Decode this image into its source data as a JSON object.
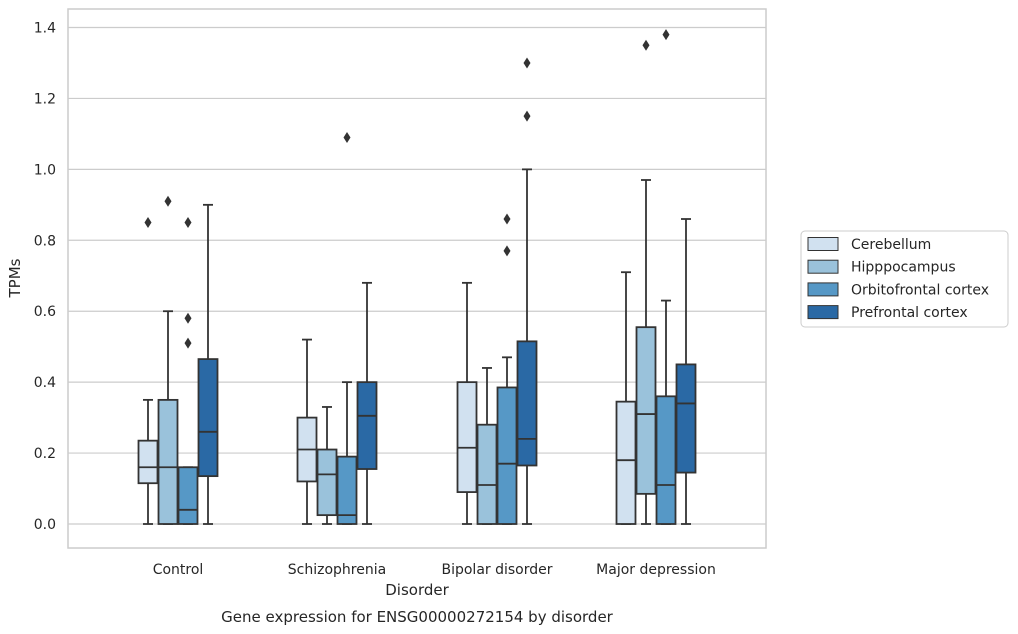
{
  "chart_data": {
    "type": "boxplot",
    "xlabel": "Disorder",
    "ylabel": "TPMs",
    "caption": "Gene expression for ENSG00000272154 by disorder",
    "ylim": [
      -0.065,
      1.45
    ],
    "yticks": [
      0.0,
      0.2,
      0.4,
      0.6,
      0.8,
      1.0,
      1.2,
      1.4
    ],
    "ytick_labels": [
      "0.0",
      "0.2",
      "0.4",
      "0.6",
      "0.8",
      "1.0",
      "1.2",
      "1.4"
    ],
    "grid": "horizontal",
    "legend_position": "right",
    "categories": [
      "Control",
      "Schizophrenia",
      "Bipolar disorder",
      "Major depression"
    ],
    "series": [
      {
        "name": "Cerebellum",
        "color": "#d1e1f0",
        "boxes": [
          {
            "q1": 0.115,
            "median": 0.16,
            "q3": 0.235,
            "whisker_low": 0.0,
            "whisker_high": 0.35,
            "outliers": [
              0.85
            ]
          },
          {
            "q1": 0.12,
            "median": 0.21,
            "q3": 0.3,
            "whisker_low": 0.0,
            "whisker_high": 0.52,
            "outliers": []
          },
          {
            "q1": 0.09,
            "median": 0.215,
            "q3": 0.4,
            "whisker_low": 0.0,
            "whisker_high": 0.68,
            "outliers": []
          },
          {
            "q1": 0.0,
            "median": 0.18,
            "q3": 0.345,
            "whisker_low": 0.0,
            "whisker_high": 0.71,
            "outliers": []
          }
        ]
      },
      {
        "name": "Hipppocampus",
        "color": "#9ac2db",
        "boxes": [
          {
            "q1": 0.0,
            "median": 0.16,
            "q3": 0.35,
            "whisker_low": 0.0,
            "whisker_high": 0.6,
            "outliers": [
              0.91
            ]
          },
          {
            "q1": 0.025,
            "median": 0.14,
            "q3": 0.21,
            "whisker_low": 0.0,
            "whisker_high": 0.33,
            "outliers": []
          },
          {
            "q1": 0.0,
            "median": 0.11,
            "q3": 0.28,
            "whisker_low": 0.0,
            "whisker_high": 0.44,
            "outliers": []
          },
          {
            "q1": 0.085,
            "median": 0.31,
            "q3": 0.555,
            "whisker_low": 0.0,
            "whisker_high": 0.97,
            "outliers": [
              1.35
            ]
          }
        ]
      },
      {
        "name": "Orbitofrontal cortex",
        "color": "#5698c6",
        "boxes": [
          {
            "q1": 0.0,
            "median": 0.04,
            "q3": 0.16,
            "whisker_low": 0.0,
            "whisker_high": 0.16,
            "outliers": [
              0.51,
              0.58,
              0.85
            ]
          },
          {
            "q1": 0.0,
            "median": 0.025,
            "q3": 0.19,
            "whisker_low": 0.0,
            "whisker_high": 0.4,
            "outliers": [
              1.09
            ]
          },
          {
            "q1": 0.0,
            "median": 0.17,
            "q3": 0.385,
            "whisker_low": 0.0,
            "whisker_high": 0.47,
            "outliers": [
              0.77,
              0.86
            ]
          },
          {
            "q1": 0.0,
            "median": 0.11,
            "q3": 0.36,
            "whisker_low": 0.0,
            "whisker_high": 0.63,
            "outliers": [
              1.38
            ]
          }
        ]
      },
      {
        "name": "Prefrontal cortex",
        "color": "#2a69a5",
        "boxes": [
          {
            "q1": 0.135,
            "median": 0.26,
            "q3": 0.465,
            "whisker_low": 0.0,
            "whisker_high": 0.9,
            "outliers": []
          },
          {
            "q1": 0.155,
            "median": 0.305,
            "q3": 0.4,
            "whisker_low": 0.0,
            "whisker_high": 0.68,
            "outliers": []
          },
          {
            "q1": 0.165,
            "median": 0.24,
            "q3": 0.515,
            "whisker_low": 0.0,
            "whisker_high": 1.0,
            "outliers": [
              1.15,
              1.3
            ]
          },
          {
            "q1": 0.145,
            "median": 0.34,
            "q3": 0.45,
            "whisker_low": 0.0,
            "whisker_high": 0.86,
            "outliers": []
          }
        ]
      }
    ],
    "line_color": "#333333",
    "grid_color": "#cccccc",
    "frame_color": "#cccccc"
  }
}
